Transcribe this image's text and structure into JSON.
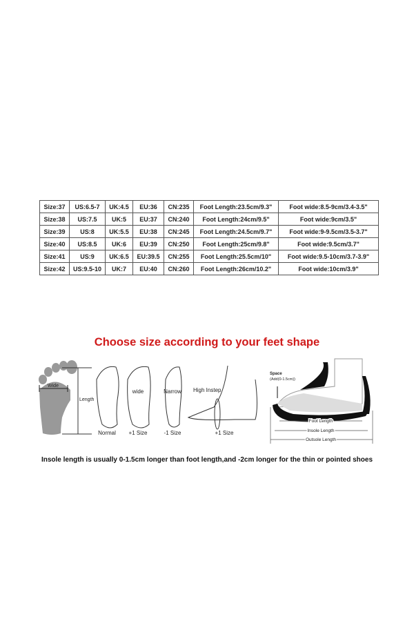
{
  "size_table": {
    "rows": [
      [
        "Size:37",
        "US:6.5-7",
        "UK:4.5",
        "EU:36",
        "CN:235",
        "Foot Length:23.5cm/9.3\"",
        "Foot wide:8.5-9cm/3.4-3.5\""
      ],
      [
        "Size:38",
        "US:7.5",
        "UK:5",
        "EU:37",
        "CN:240",
        "Foot Length:24cm/9.5\"",
        "Foot wide:9cm/3.5\""
      ],
      [
        "Size:39",
        "US:8",
        "UK:5.5",
        "EU:38",
        "CN:245",
        "Foot Length:24.5cm/9.7\"",
        "Foot wide:9-9.5cm/3.5-3.7\""
      ],
      [
        "Size:40",
        "US:8.5",
        "UK:6",
        "EU:39",
        "CN:250",
        "Foot Length:25cm/9.8\"",
        "Foot wide:9.5cm/3.7\""
      ],
      [
        "Size:41",
        "US:9",
        "UK:6.5",
        "EU:39.5",
        "CN:255",
        "Foot Length:25.5cm/10\"",
        "Foot wide:9.5-10cm/3.7-3.9\""
      ],
      [
        "Size:42",
        "US:9.5-10",
        "UK:7",
        "EU:40",
        "CN:260",
        "Foot Length:26cm/10.2\"",
        "Foot wide:10cm/3.9\""
      ]
    ]
  },
  "title": "Choose size according to your feet shape",
  "title_color": "#d01a1a",
  "feet": {
    "wide": "Wide",
    "length": "Length",
    "normal": "Normal",
    "wide_foot": "wide",
    "plus1": "+1 Size",
    "narrow": "Narrow",
    "minus1": "-1 Size",
    "high_instep": "High Instep",
    "plus1_instep": "+1 Size"
  },
  "shoe": {
    "space": "Space",
    "space_add": "(Add(0-1.5cm))",
    "foot_length": "Foot Length",
    "insole_length": "Insole Length",
    "outsole_length": "Outsole Length"
  },
  "note": "Insole length is usually 0-1.5cm longer than foot length,and -2cm longer for the thin or pointed shoes"
}
